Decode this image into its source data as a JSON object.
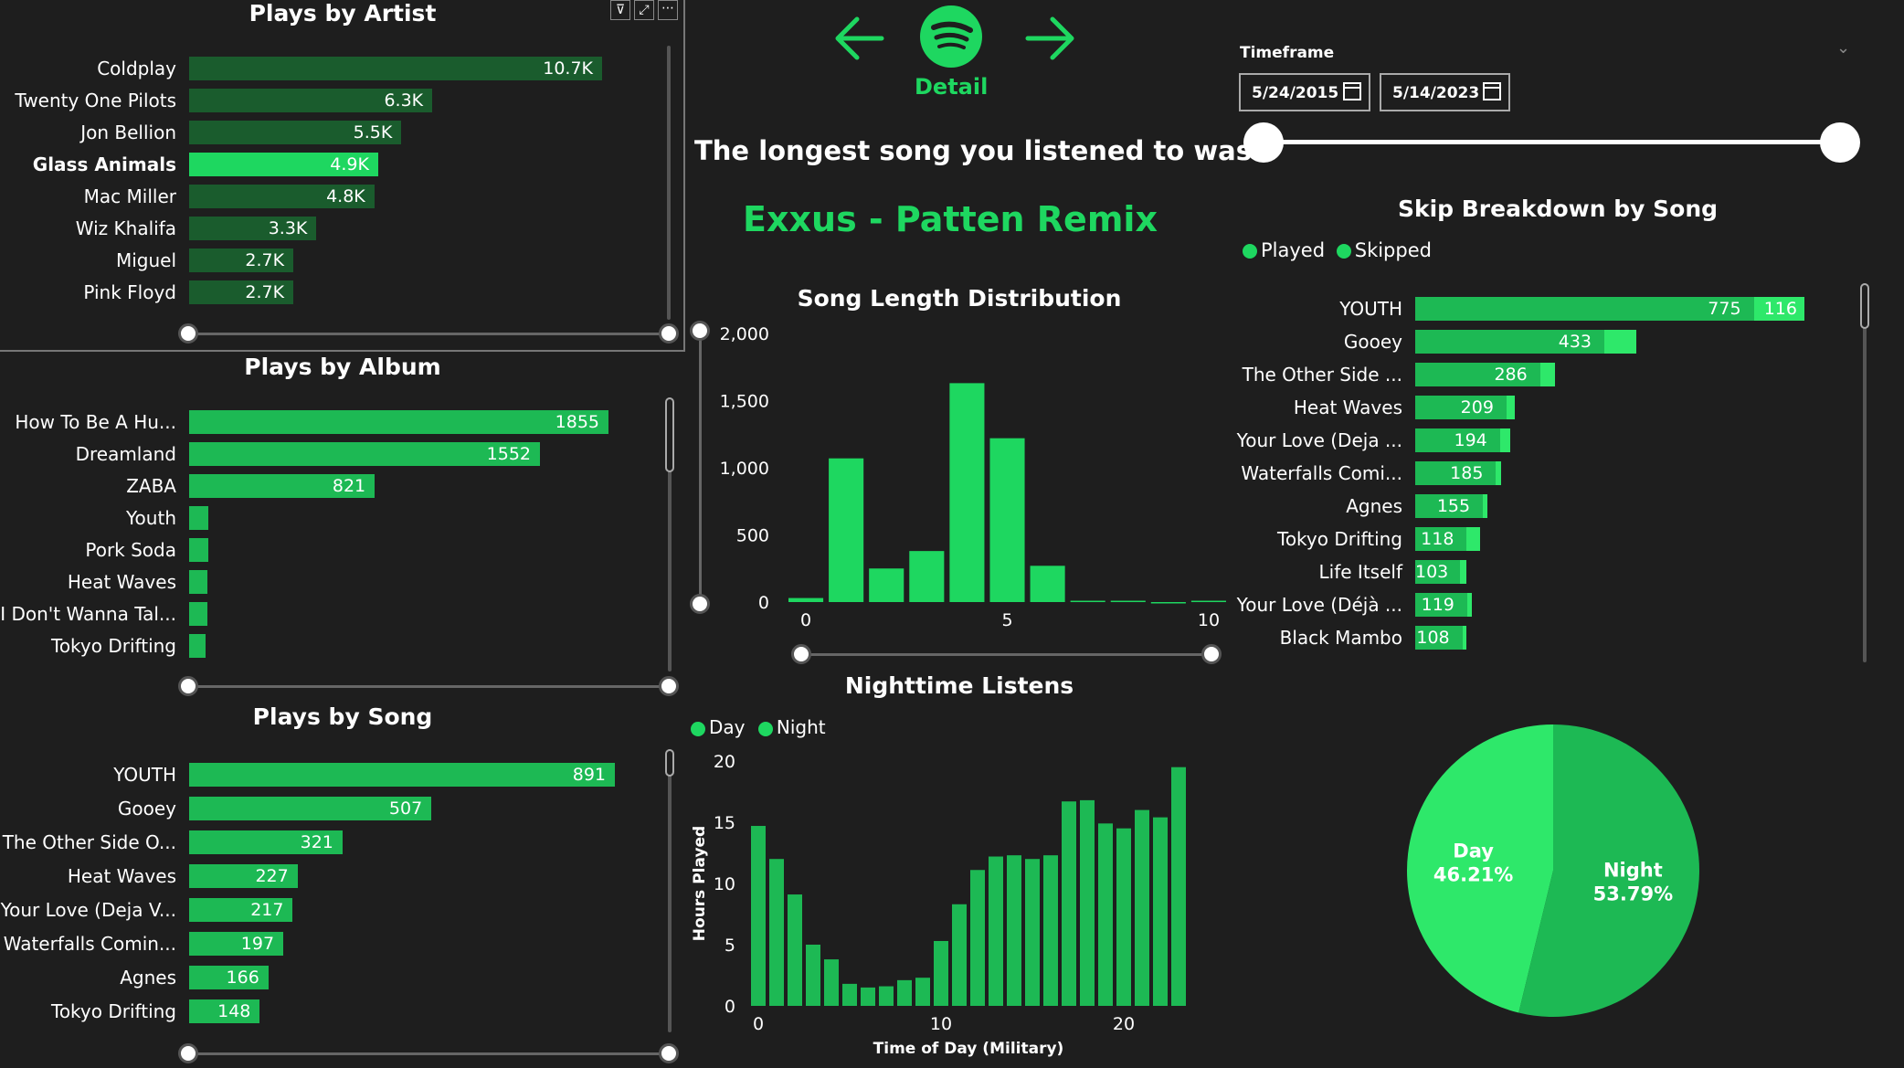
{
  "artist_panel": {
    "title": "Plays by Artist",
    "rows": [
      {
        "label": "Coldplay",
        "value": "10.7K",
        "num": 10.7,
        "selected": false
      },
      {
        "label": "Twenty One Pilots",
        "value": "6.3K",
        "num": 6.3,
        "selected": false
      },
      {
        "label": "Jon Bellion",
        "value": "5.5K",
        "num": 5.5,
        "selected": false
      },
      {
        "label": "Glass Animals",
        "value": "4.9K",
        "num": 4.9,
        "selected": true
      },
      {
        "label": "Mac Miller",
        "value": "4.8K",
        "num": 4.8,
        "selected": false
      },
      {
        "label": "Wiz Khalifa",
        "value": "3.3K",
        "num": 3.3,
        "selected": false
      },
      {
        "label": "Miguel",
        "value": "2.7K",
        "num": 2.7,
        "selected": false
      },
      {
        "label": "Pink Floyd",
        "value": "2.7K",
        "num": 2.7,
        "selected": false
      }
    ],
    "header_icons": [
      "filter-icon",
      "focus-mode-icon",
      "more-options-icon"
    ]
  },
  "album_panel": {
    "title": "Plays by Album",
    "rows": [
      {
        "label": "How To Be A Hu...",
        "value": "1855",
        "num": 1855
      },
      {
        "label": "Dreamland",
        "value": "1552",
        "num": 1552
      },
      {
        "label": "ZABA",
        "value": "821",
        "num": 821
      },
      {
        "label": "Youth",
        "value": "",
        "num": 85
      },
      {
        "label": "Pork Soda",
        "value": "",
        "num": 85
      },
      {
        "label": "Heat Waves",
        "value": "",
        "num": 80
      },
      {
        "label": "I Don't Wanna Tal...",
        "value": "",
        "num": 80
      },
      {
        "label": "Tokyo Drifting",
        "value": "",
        "num": 70
      }
    ]
  },
  "song_panel": {
    "title": "Plays by Song",
    "rows": [
      {
        "label": "YOUTH",
        "value": "891",
        "num": 891
      },
      {
        "label": "Gooey",
        "value": "507",
        "num": 507
      },
      {
        "label": "The Other Side O...",
        "value": "321",
        "num": 321
      },
      {
        "label": "Heat Waves",
        "value": "227",
        "num": 227
      },
      {
        "label": "Your Love (Deja V...",
        "value": "217",
        "num": 217
      },
      {
        "label": "Waterfalls Comin...",
        "value": "197",
        "num": 197
      },
      {
        "label": "Agnes",
        "value": "166",
        "num": 166
      },
      {
        "label": "Tokyo Drifting",
        "value": "148",
        "num": 148
      }
    ]
  },
  "nav": {
    "back_icon": "arrow-left-icon",
    "forward_icon": "arrow-right-icon",
    "logo_icon": "spotify-logo-icon",
    "detail_label": "Detail"
  },
  "longest_song": {
    "heading": "The longest song you listened to was:",
    "song": "Exxus - Patten Remix"
  },
  "timeframe": {
    "label": "Timeframe",
    "start": "5/24/2015",
    "end": "5/14/2023",
    "chevron_icon": "chevron-down-icon",
    "calendar_icon": "calendar-icon"
  },
  "skip_panel": {
    "title": "Skip Breakdown by Song",
    "legend": [
      "Played",
      "Skipped"
    ],
    "rows": [
      {
        "label": "YOUTH",
        "played": 775,
        "skipped": 116,
        "played_label": "775",
        "skipped_label": "116"
      },
      {
        "label": "Gooey",
        "played": 433,
        "skipped": 74,
        "played_label": "433",
        "skipped_label": ""
      },
      {
        "label": "The Other Side ...",
        "played": 286,
        "skipped": 35,
        "played_label": "286",
        "skipped_label": ""
      },
      {
        "label": "Heat Waves",
        "played": 209,
        "skipped": 18,
        "played_label": "209",
        "skipped_label": ""
      },
      {
        "label": "Your Love (Deja ...",
        "played": 194,
        "skipped": 23,
        "played_label": "194",
        "skipped_label": ""
      },
      {
        "label": "Waterfalls Comi...",
        "played": 185,
        "skipped": 12,
        "played_label": "185",
        "skipped_label": ""
      },
      {
        "label": "Agnes",
        "played": 155,
        "skipped": 11,
        "played_label": "155",
        "skipped_label": ""
      },
      {
        "label": "Tokyo Drifting",
        "played": 118,
        "skipped": 30,
        "played_label": "118",
        "skipped_label": ""
      },
      {
        "label": "Life Itself",
        "played": 103,
        "skipped": 15,
        "played_label": "103",
        "skipped_label": ""
      },
      {
        "label": "Your Love (Déjà ...",
        "played": 119,
        "skipped": 10,
        "played_label": "119",
        "skipped_label": ""
      },
      {
        "label": "Black Mambo",
        "played": 108,
        "skipped": 9,
        "played_label": "108",
        "skipped_label": ""
      }
    ]
  },
  "colors": {
    "background": "#1e1e1e",
    "accent": "#1ed760",
    "bar": "#1db954",
    "bar_dark": "#1a5c2d",
    "pie_day": "#2ee86a",
    "pie_night": "#1db954"
  },
  "chart_data": [
    {
      "type": "bar",
      "title": "Song Length Distribution",
      "xlabel": "",
      "ylabel": "",
      "x": [
        0,
        1,
        2,
        3,
        4,
        5,
        6,
        7,
        8,
        9,
        10
      ],
      "values": [
        30,
        1070,
        250,
        380,
        1630,
        1220,
        270,
        10,
        10,
        0,
        10
      ],
      "ylim": [
        0,
        2000
      ],
      "yticks": [
        "0",
        "500",
        "1,000",
        "1,500",
        "2,000"
      ],
      "xticks": [
        "0",
        "5",
        "10"
      ],
      "grid": false
    },
    {
      "type": "bar",
      "title": "Nighttime Listens",
      "xlabel": "Time of Day (Military)",
      "ylabel": "Hours Played",
      "legend": [
        "Day",
        "Night"
      ],
      "legend_position": "top-left",
      "x": [
        0,
        1,
        2,
        3,
        4,
        5,
        6,
        7,
        8,
        9,
        10,
        11,
        12,
        13,
        14,
        15,
        16,
        17,
        18,
        19,
        20,
        21,
        22,
        23
      ],
      "values": [
        14.7,
        12.0,
        9.1,
        5.0,
        3.8,
        1.8,
        1.5,
        1.6,
        2.1,
        2.3,
        5.3,
        8.3,
        11.1,
        12.2,
        12.3,
        12.0,
        12.3,
        16.7,
        16.8,
        14.9,
        14.5,
        16.0,
        15.4,
        19.5
      ],
      "ylim": [
        0,
        20
      ],
      "yticks": [
        "0",
        "5",
        "10",
        "15",
        "20"
      ],
      "xticks": [
        "0",
        "10",
        "20"
      ],
      "grid": false
    },
    {
      "type": "pie",
      "title": "",
      "slices": [
        {
          "name": "Day",
          "value": 46.21,
          "label": "46.21%"
        },
        {
          "name": "Night",
          "value": 53.79,
          "label": "53.79%"
        }
      ]
    }
  ]
}
